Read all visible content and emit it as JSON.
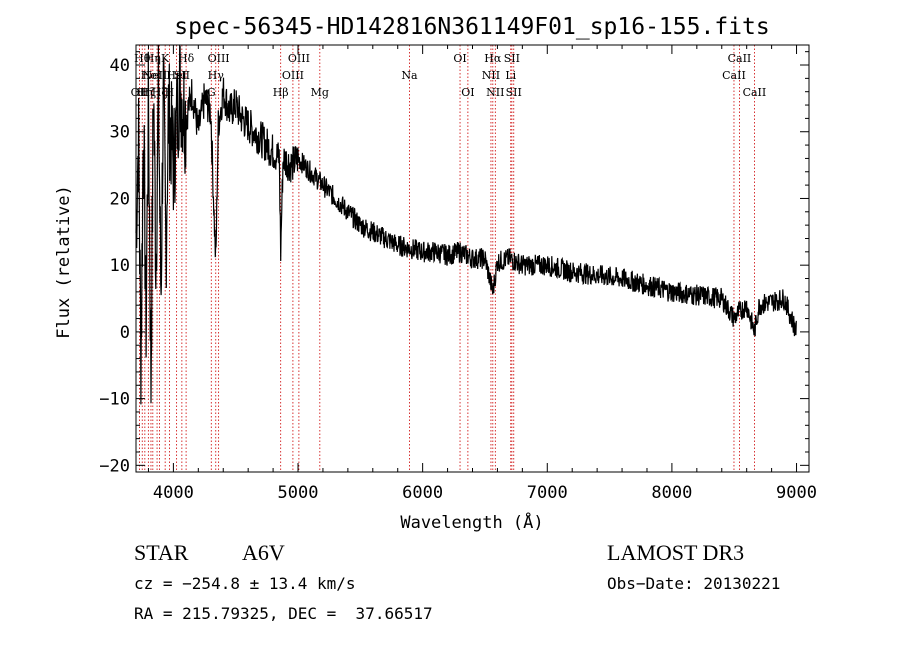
{
  "chart_data": {
    "type": "line",
    "title": "spec-56345-HD142816N361149F01_sp16-155.fits",
    "xlabel": "Wavelength (Å)",
    "ylabel": "Flux (relative)",
    "xlim": [
      3700,
      9100
    ],
    "ylim": [
      -21,
      43
    ],
    "xticks": [
      4000,
      5000,
      6000,
      7000,
      8000,
      9000
    ],
    "yticks": [
      -20,
      -10,
      0,
      10,
      20,
      30,
      40
    ],
    "series": [
      {
        "name": "flux",
        "x": [
          3700,
          3720,
          3740,
          3760,
          3780,
          3800,
          3820,
          3840,
          3860,
          3880,
          3900,
          3920,
          3940,
          3960,
          3980,
          4000,
          4050,
          4100,
          4150,
          4200,
          4250,
          4300,
          4340,
          4360,
          4400,
          4450,
          4500,
          4550,
          4600,
          4650,
          4700,
          4750,
          4800,
          4850,
          4861,
          4880,
          4950,
          5000,
          5100,
          5200,
          5300,
          5400,
          5500,
          5600,
          5700,
          5800,
          5900,
          6000,
          6100,
          6200,
          6300,
          6400,
          6500,
          6563,
          6600,
          6700,
          6800,
          7000,
          7200,
          7400,
          7600,
          7800,
          8000,
          8200,
          8400,
          8498,
          8542,
          8600,
          8662,
          8700,
          8800,
          8900,
          9000
        ],
        "y": [
          15,
          30,
          -5,
          33,
          0,
          35,
          -8,
          38,
          10,
          36,
          5,
          37,
          12,
          33,
          30,
          25,
          37,
          32,
          36,
          30,
          35,
          33,
          10,
          31,
          36,
          33,
          34,
          32,
          31,
          30,
          29,
          28,
          27,
          26,
          12,
          26,
          25,
          26,
          24,
          22,
          20,
          18,
          16,
          15,
          14,
          13,
          12.5,
          12,
          12,
          11.5,
          12,
          11,
          11,
          6,
          10.5,
          11,
          10,
          10,
          9,
          8.5,
          8,
          7,
          6,
          5.5,
          5,
          2,
          3,
          4,
          0,
          4,
          4.5,
          5,
          0
        ]
      }
    ],
    "lines": [
      {
        "wave": 3728,
        "label": "OII",
        "row": 3
      },
      {
        "wave": 3750,
        "label": "Hθ",
        "row": 1
      },
      {
        "wave": 3771,
        "label": "Hη",
        "row": 3
      },
      {
        "wave": 3799,
        "label": "Hζ",
        "row": 3
      },
      {
        "wave": 3820,
        "label": "HeI",
        "row": 2
      },
      {
        "wave": 3835,
        "label": "Hη",
        "row": 1
      },
      {
        "wave": 3869,
        "label": "NeIII",
        "row": 2
      },
      {
        "wave": 3889,
        "label": "Hζ",
        "row": 3
      },
      {
        "wave": 3934,
        "label": "K",
        "row": 1
      },
      {
        "wave": 3968,
        "label": "H",
        "row": 3
      },
      {
        "wave": 4026,
        "label": "HeI",
        "row": 2
      },
      {
        "wave": 4102,
        "label": "Hδ",
        "row": 1
      },
      {
        "wave": 4068,
        "label": "SII",
        "row": 2
      },
      {
        "wave": 4304,
        "label": "G",
        "row": 3
      },
      {
        "wave": 4340,
        "label": "Hγ",
        "row": 2
      },
      {
        "wave": 4363,
        "label": "OIII",
        "row": 1
      },
      {
        "wave": 4861,
        "label": "Hβ",
        "row": 3
      },
      {
        "wave": 4959,
        "label": "OIII",
        "row": 2
      },
      {
        "wave": 5007,
        "label": "OIII",
        "row": 1
      },
      {
        "wave": 5175,
        "label": "Mg",
        "row": 3
      },
      {
        "wave": 5894,
        "label": "Na",
        "row": 2
      },
      {
        "wave": 6300,
        "label": "OI",
        "row": 1
      },
      {
        "wave": 6363,
        "label": "OI",
        "row": 3
      },
      {
        "wave": 6548,
        "label": "NII",
        "row": 2
      },
      {
        "wave": 6563,
        "label": "Hα",
        "row": 1
      },
      {
        "wave": 6583,
        "label": "NII",
        "row": 3
      },
      {
        "wave": 6707,
        "label": "Li",
        "row": 2
      },
      {
        "wave": 6716,
        "label": "SII",
        "row": 1
      },
      {
        "wave": 6731,
        "label": "SII",
        "row": 3
      },
      {
        "wave": 8498,
        "label": "CaII",
        "row": 2
      },
      {
        "wave": 8542,
        "label": "CaII",
        "row": 1
      },
      {
        "wave": 8662,
        "label": "CaII",
        "row": 3
      }
    ]
  },
  "info": {
    "obj_class": "STAR",
    "subclass": "A6V",
    "survey": "LAMOST DR3",
    "cz": "cz = −254.8 ± 13.4 km/s",
    "obs_date": "Obs−Date: 20130221",
    "coords": "RA = 215.79325, DEC =  37.66517"
  },
  "colors": {
    "spectrum": "#000000",
    "line_marker": "#cc0000"
  }
}
